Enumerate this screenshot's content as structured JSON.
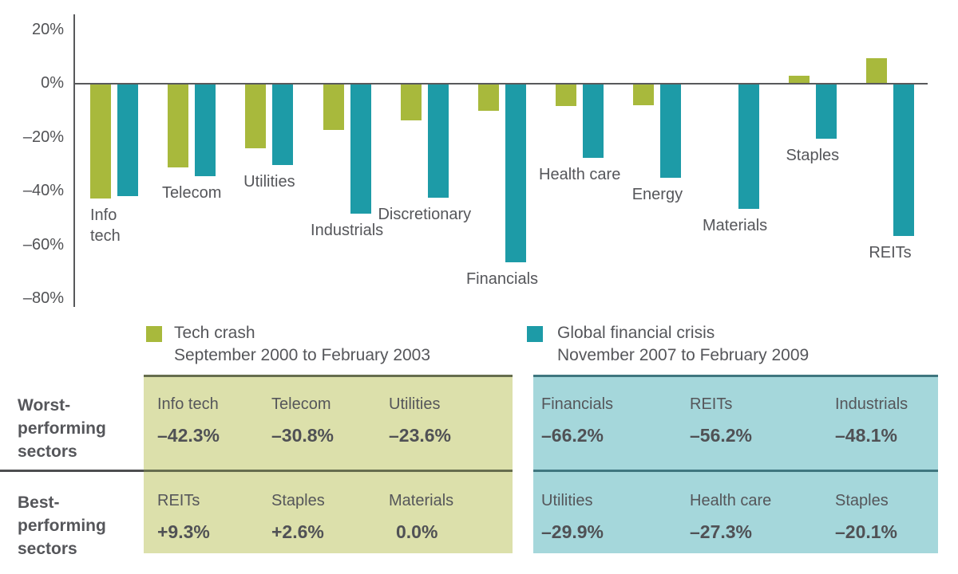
{
  "chart_data": {
    "type": "bar",
    "title": "",
    "xlabel": "",
    "ylabel": "",
    "ylim": [
      -80,
      20
    ],
    "grid": false,
    "legend_position": "below",
    "y_ticks": [
      20,
      0,
      -20,
      -40,
      -60,
      -80
    ],
    "y_tick_labels": [
      "20%",
      "0%",
      "–20%",
      "–40%",
      "–60%",
      "–80%"
    ],
    "categories": [
      "Info tech",
      "Telecom",
      "Utilities",
      "Industrials",
      "Discretionary",
      "Financials",
      "Health care",
      "Energy",
      "Materials",
      "Staples",
      "REITs"
    ],
    "categories_display": [
      "Info\ntech",
      "Telecom",
      "Utilities",
      "Industrials",
      "Discretionary",
      "Financials",
      "Health care",
      "Energy",
      "Materials",
      "Staples",
      "REITs"
    ],
    "series": [
      {
        "name": "Tech crash",
        "period": "September 2000 to February 2003",
        "color": "#a8b93c",
        "values": [
          -42.3,
          -30.8,
          -23.6,
          -16.8,
          -13.2,
          -9.8,
          -7.9,
          -7.6,
          0.0,
          2.6,
          9.3
        ]
      },
      {
        "name": "Global financial crisis",
        "period": "November 2007 to February 2009",
        "color": "#1d9ba7",
        "values": [
          -41.5,
          -34.0,
          -29.9,
          -48.1,
          -42.0,
          -66.2,
          -27.3,
          -34.7,
          -46.3,
          -20.1,
          -56.2
        ]
      }
    ]
  },
  "legend": {
    "items": [
      {
        "label": "Tech crash",
        "period": "September 2000 to February 2003",
        "color": "#a8b93c"
      },
      {
        "label": "Global financial crisis",
        "period": "November 2007 to February 2009",
        "color": "#1d9ba7"
      }
    ]
  },
  "table": {
    "row_headers": [
      "Worst-performing sectors",
      "Best-performing sectors"
    ],
    "panels": [
      {
        "name": "tech-crash",
        "bg": "#dce0ab",
        "border": "#666d4e",
        "worst": [
          {
            "sector": "Info tech",
            "value": "–42.3%"
          },
          {
            "sector": "Telecom",
            "value": "–30.8%"
          },
          {
            "sector": "Utilities",
            "value": "–23.6%"
          }
        ],
        "best": [
          {
            "sector": "REITs",
            "value": "+9.3%"
          },
          {
            "sector": "Staples",
            "value": "+2.6%"
          },
          {
            "sector": "Materials",
            "value": "0.0%"
          }
        ]
      },
      {
        "name": "global-financial-crisis",
        "bg": "#a5d7db",
        "border": "#3f767f",
        "worst": [
          {
            "sector": "Financials",
            "value": "–66.2%"
          },
          {
            "sector": "REITs",
            "value": "–56.2%"
          },
          {
            "sector": "Industrials",
            "value": "–48.1%"
          }
        ],
        "best": [
          {
            "sector": "Utilities",
            "value": "–29.9%"
          },
          {
            "sector": "Health care",
            "value": "–27.3%"
          },
          {
            "sector": "Staples",
            "value": "–20.1%"
          }
        ]
      }
    ]
  },
  "colors": {
    "axis": "#58595b",
    "text": "#55565a",
    "separator_white": "#4d4e50"
  }
}
